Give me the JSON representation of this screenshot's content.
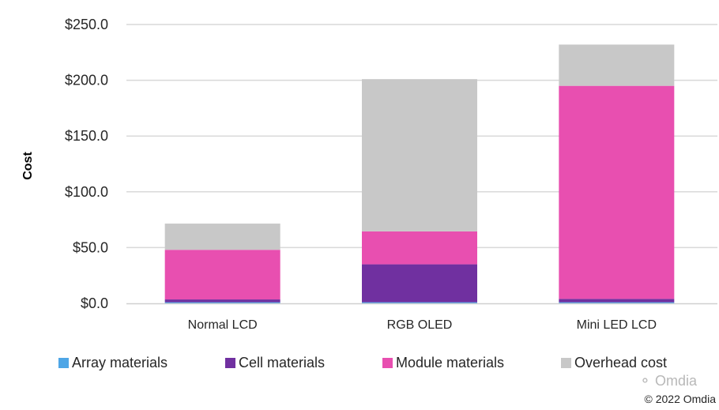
{
  "chart_data": {
    "type": "bar",
    "stacked": true,
    "title": "",
    "xlabel": "",
    "ylabel": "Cost",
    "ylim": [
      0,
      250
    ],
    "yticks": [
      0,
      50,
      100,
      150,
      200,
      250
    ],
    "ytick_labels": [
      "$0.0",
      "$50.0",
      "$100.0",
      "$150.0",
      "$200.0",
      "$250.0"
    ],
    "grid": true,
    "legend_position": "bottom",
    "categories": [
      "Normal LCD",
      "RGB OLED",
      "Mini LED LCD"
    ],
    "series": [
      {
        "name": "Array materials",
        "color": "#4ea6e6",
        "values": [
          1.0,
          1.0,
          1.0
        ]
      },
      {
        "name": "Cell materials",
        "color": "#7030a0",
        "values": [
          2.5,
          34.0,
          3.0
        ]
      },
      {
        "name": "Module materials",
        "color": "#e84fb0",
        "values": [
          44.5,
          29.5,
          191.0
        ]
      },
      {
        "name": "Overhead cost",
        "color": "#c8c8c8",
        "values": [
          23.5,
          136.5,
          37.0
        ]
      }
    ]
  },
  "footer": {
    "watermark": "Omdia",
    "copyright": "© 2022 Omdia"
  }
}
